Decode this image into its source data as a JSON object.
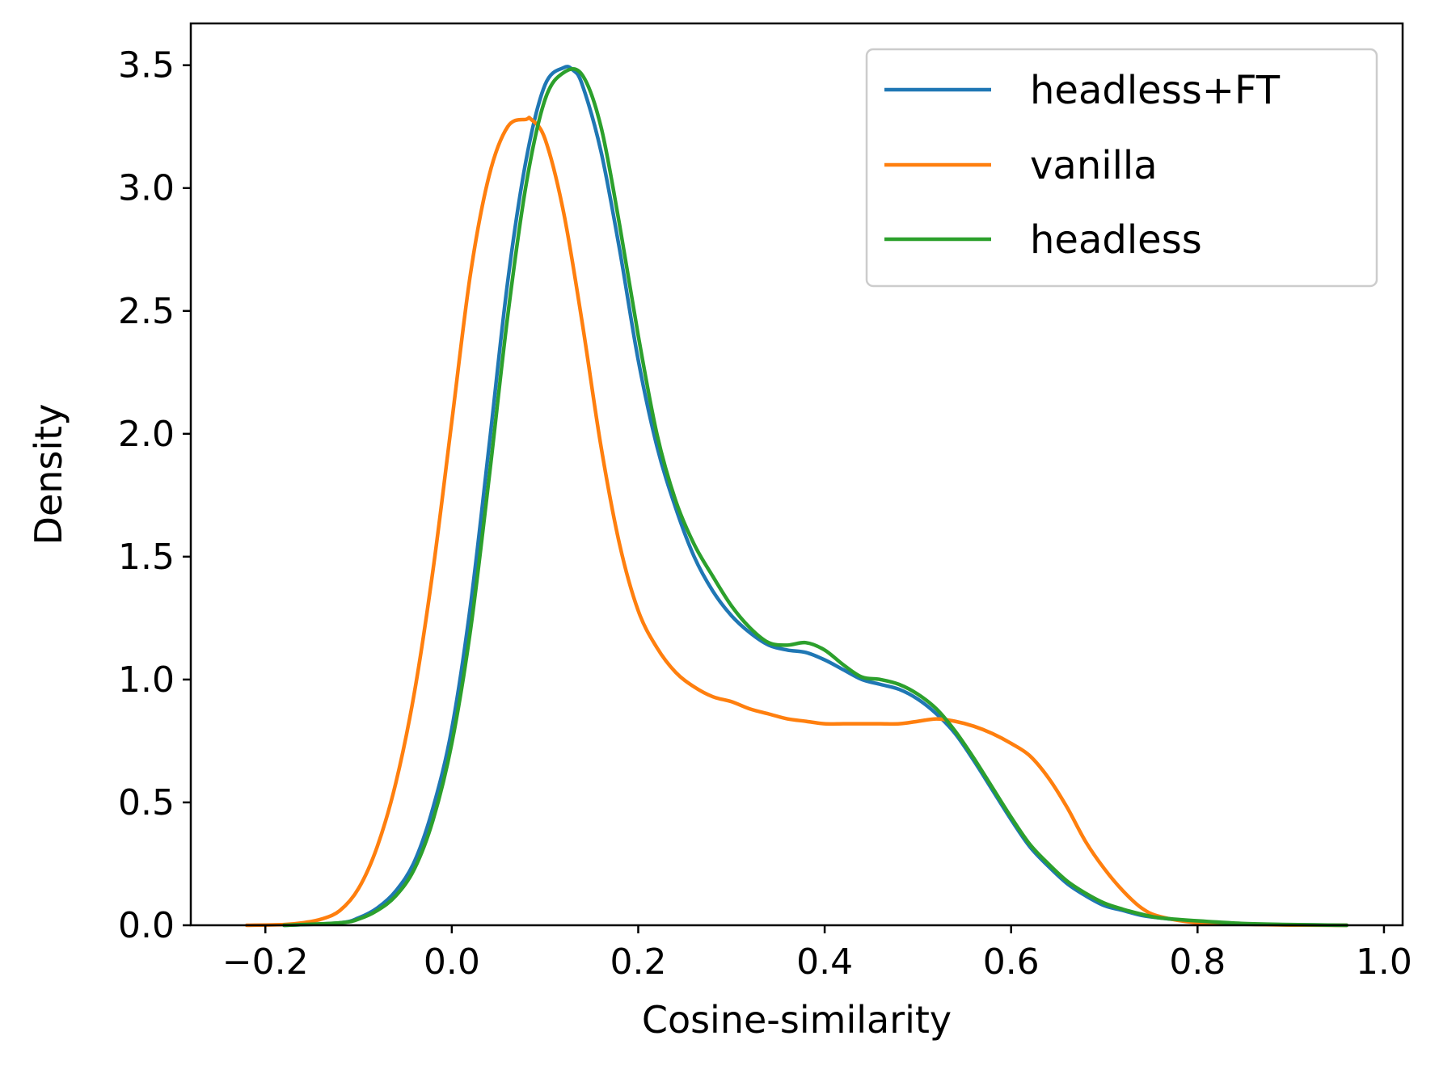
{
  "chart_data": {
    "type": "line",
    "xlabel": "Cosine-similarity",
    "ylabel": "Density",
    "xlim": [
      -0.28,
      1.02
    ],
    "ylim": [
      0,
      3.67
    ],
    "xticks": [
      -0.2,
      0.0,
      0.2,
      0.4,
      0.6,
      0.8,
      1.0
    ],
    "xtick_labels": [
      "−0.2",
      "0.0",
      "0.2",
      "0.4",
      "0.6",
      "0.8",
      "1.0"
    ],
    "yticks": [
      0.0,
      0.5,
      1.0,
      1.5,
      2.0,
      2.5,
      3.0,
      3.5
    ],
    "ytick_labels": [
      "0.0",
      "0.5",
      "1.0",
      "1.5",
      "2.0",
      "2.5",
      "3.0",
      "3.5"
    ],
    "grid": false,
    "legend": "top-right",
    "series": [
      {
        "name": "headless+FT",
        "color": "#1f77b4",
        "x": [
          -0.18,
          -0.12,
          -0.1,
          -0.08,
          -0.06,
          -0.04,
          -0.02,
          0.0,
          0.02,
          0.04,
          0.06,
          0.08,
          0.1,
          0.12,
          0.13,
          0.14,
          0.16,
          0.18,
          0.2,
          0.22,
          0.24,
          0.26,
          0.28,
          0.3,
          0.32,
          0.34,
          0.36,
          0.38,
          0.4,
          0.42,
          0.44,
          0.46,
          0.48,
          0.5,
          0.52,
          0.54,
          0.56,
          0.58,
          0.6,
          0.62,
          0.64,
          0.66,
          0.68,
          0.7,
          0.72,
          0.74,
          0.76,
          0.8,
          0.85,
          0.9,
          0.96
        ],
        "y": [
          0.0,
          0.01,
          0.03,
          0.07,
          0.14,
          0.26,
          0.48,
          0.8,
          1.3,
          1.95,
          2.62,
          3.12,
          3.42,
          3.49,
          3.48,
          3.42,
          3.15,
          2.75,
          2.3,
          1.95,
          1.7,
          1.5,
          1.36,
          1.26,
          1.19,
          1.14,
          1.12,
          1.11,
          1.08,
          1.04,
          1.0,
          0.98,
          0.96,
          0.92,
          0.86,
          0.78,
          0.67,
          0.55,
          0.43,
          0.32,
          0.24,
          0.17,
          0.12,
          0.08,
          0.06,
          0.04,
          0.03,
          0.015,
          0.005,
          0.002,
          0.0
        ]
      },
      {
        "name": "vanilla",
        "color": "#ff7f0e",
        "x": [
          -0.22,
          -0.18,
          -0.16,
          -0.14,
          -0.12,
          -0.1,
          -0.08,
          -0.06,
          -0.04,
          -0.02,
          0.0,
          0.02,
          0.04,
          0.06,
          0.08,
          0.085,
          0.1,
          0.12,
          0.14,
          0.16,
          0.18,
          0.2,
          0.22,
          0.24,
          0.26,
          0.28,
          0.3,
          0.32,
          0.34,
          0.36,
          0.38,
          0.4,
          0.42,
          0.44,
          0.46,
          0.48,
          0.5,
          0.52,
          0.54,
          0.56,
          0.58,
          0.6,
          0.62,
          0.64,
          0.66,
          0.68,
          0.7,
          0.72,
          0.74,
          0.76,
          0.8,
          0.85,
          0.9,
          0.96
        ],
        "y": [
          0.0,
          0.003,
          0.01,
          0.025,
          0.06,
          0.15,
          0.32,
          0.58,
          0.95,
          1.45,
          2.05,
          2.65,
          3.05,
          3.25,
          3.28,
          3.28,
          3.2,
          2.9,
          2.45,
          1.95,
          1.55,
          1.28,
          1.13,
          1.03,
          0.97,
          0.93,
          0.91,
          0.88,
          0.86,
          0.84,
          0.83,
          0.82,
          0.82,
          0.82,
          0.82,
          0.82,
          0.83,
          0.84,
          0.83,
          0.81,
          0.78,
          0.74,
          0.69,
          0.6,
          0.48,
          0.34,
          0.23,
          0.14,
          0.07,
          0.035,
          0.01,
          0.004,
          0.001,
          0.0
        ]
      },
      {
        "name": "headless",
        "color": "#2ca02c",
        "x": [
          -0.18,
          -0.12,
          -0.1,
          -0.08,
          -0.06,
          -0.04,
          -0.02,
          0.0,
          0.02,
          0.04,
          0.06,
          0.08,
          0.1,
          0.12,
          0.14,
          0.16,
          0.18,
          0.2,
          0.22,
          0.24,
          0.26,
          0.28,
          0.3,
          0.32,
          0.34,
          0.36,
          0.38,
          0.4,
          0.42,
          0.44,
          0.46,
          0.48,
          0.5,
          0.52,
          0.54,
          0.56,
          0.58,
          0.6,
          0.62,
          0.64,
          0.66,
          0.68,
          0.7,
          0.72,
          0.74,
          0.76,
          0.8,
          0.85,
          0.9,
          0.96
        ],
        "y": [
          0.0,
          0.01,
          0.025,
          0.06,
          0.12,
          0.23,
          0.43,
          0.74,
          1.2,
          1.82,
          2.48,
          3.02,
          3.36,
          3.47,
          3.46,
          3.25,
          2.85,
          2.4,
          2.0,
          1.73,
          1.55,
          1.42,
          1.3,
          1.21,
          1.15,
          1.14,
          1.15,
          1.12,
          1.06,
          1.01,
          1.0,
          0.98,
          0.94,
          0.88,
          0.79,
          0.68,
          0.56,
          0.44,
          0.33,
          0.25,
          0.18,
          0.13,
          0.09,
          0.065,
          0.045,
          0.03,
          0.018,
          0.007,
          0.003,
          0.0
        ]
      }
    ]
  }
}
